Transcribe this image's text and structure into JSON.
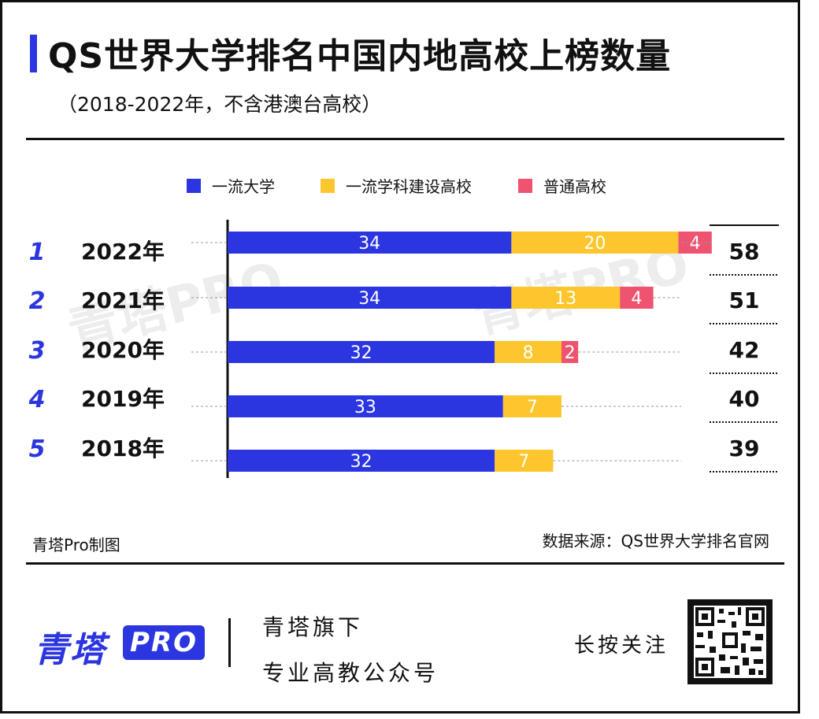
{
  "title": "QS世界大学排名中国内地高校上榜数量",
  "subtitle": "（2018-2022年，不含港澳台高校）",
  "colors": {
    "accent": "#2b35e0",
    "first_class_university": "#2b35e0",
    "first_class_discipline": "#fcc62c",
    "ordinary": "#ee5370"
  },
  "watermark": "青塔PRO",
  "chart_data": {
    "type": "bar",
    "orientation": "horizontal",
    "stacked": true,
    "categories": [
      "2022年",
      "2021年",
      "2020年",
      "2019年",
      "2018年"
    ],
    "ranks": [
      "1",
      "2",
      "3",
      "4",
      "5"
    ],
    "series": [
      {
        "name": "一流大学",
        "color": "#2b35e0",
        "values": [
          34,
          34,
          32,
          33,
          32
        ]
      },
      {
        "name": "一流学科建设高校",
        "color": "#fcc62c",
        "values": [
          20,
          13,
          8,
          7,
          7
        ]
      },
      {
        "name": "普通高校",
        "color": "#ee5370",
        "values": [
          4,
          4,
          2,
          null,
          null
        ]
      }
    ],
    "totals": [
      58,
      51,
      42,
      40,
      39
    ],
    "legend_position": "top-center",
    "grid": false
  },
  "footer": {
    "credit": "青塔Pro制图",
    "source": "数据来源：QS世界大学排名官网"
  },
  "brand": {
    "name": "青塔",
    "pro": "PRO",
    "tagline_1": "青塔旗下",
    "tagline_2": "专业高教公众号",
    "follow": "长按关注"
  }
}
